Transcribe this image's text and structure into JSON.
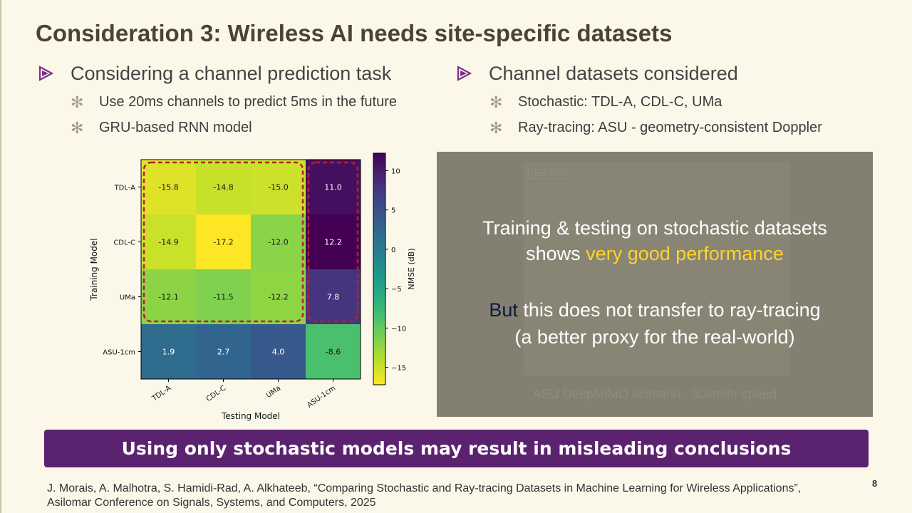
{
  "slide": {
    "title": "Consideration 3: Wireless AI needs site-specific datasets",
    "page_number": "8"
  },
  "left_column": {
    "heading": "Considering a channel prediction task",
    "bullets": [
      "Use 20ms channels to predict 5ms in the future",
      "GRU-based RNN model"
    ]
  },
  "right_column": {
    "heading": "Channel datasets considered",
    "bullets": [
      "Stochastic: TDL-A, CDL-C, UMa",
      "Ray-tracing: ASU - geometry-consistent Doppler"
    ]
  },
  "overlay": {
    "photo_label": "User Grid",
    "photo_caption": "ASU DeepMIMO scenario - 30km/hr speed",
    "line1": "Training & testing on stochastic datasets",
    "line2_prefix": "shows ",
    "line2_highlight": "very good performance",
    "line3_highlight": "But",
    "line3_rest": " this does not transfer to ray-tracing",
    "line4": "(a better proxy for the real-world)",
    "highlight_color": "#ffd429"
  },
  "banner": {
    "text": "Using only stochastic models may result in misleading conclusions",
    "color": "#5b2270"
  },
  "citation": {
    "line1": "J. Morais, A. Malhotra, S. Hamidi-Rad, A. Alkhateeb, “Comparing Stochastic and Ray-tracing Datasets in Machine Learning for Wireless Applications”,",
    "line2": "Asilomar Conference on Signals, Systems, and Computers, 2025"
  },
  "chart_data": {
    "type": "heatmap",
    "colormap": "viridis_r",
    "rows": [
      "TDL-A",
      "CDL-C",
      "UMa",
      "ASU-1cm"
    ],
    "columns": [
      "TDL-A",
      "CDL-C",
      "UMa",
      "ASU-1cm"
    ],
    "values": [
      [
        -15.8,
        -14.8,
        -15.0,
        11.0
      ],
      [
        -14.9,
        -17.2,
        -12.0,
        12.2
      ],
      [
        -12.1,
        -11.5,
        -12.2,
        7.8
      ],
      [
        1.9,
        2.7,
        4.0,
        -8.6
      ]
    ],
    "value_labels": [
      [
        "-15.8",
        "-14.8",
        "-15.0",
        "11.0"
      ],
      [
        "-14.9",
        "-17.2",
        "-12.0",
        "12.2"
      ],
      [
        "-12.1",
        "-11.5",
        "-12.2",
        "7.8"
      ],
      [
        "1.9",
        "2.7",
        "4.0",
        "-8.6"
      ]
    ],
    "xlabel": "Testing Model",
    "ylabel": "Training Model",
    "colorbar": {
      "label": "NMSE (dB)",
      "range": [
        -17.2,
        12.2
      ],
      "ticks": [
        10,
        5,
        0,
        -5,
        -10,
        -15
      ],
      "tick_labels": [
        "10",
        "5",
        "0",
        "−5",
        "−10",
        "−15"
      ]
    },
    "highlight_boxes": [
      {
        "rows": [
          0,
          2
        ],
        "cols": [
          0,
          2
        ],
        "style": "dashed",
        "color": "#b5202f"
      },
      {
        "rows": [
          0,
          2
        ],
        "cols": [
          3,
          3
        ],
        "style": "dashed",
        "color": "#b5202f"
      }
    ]
  }
}
